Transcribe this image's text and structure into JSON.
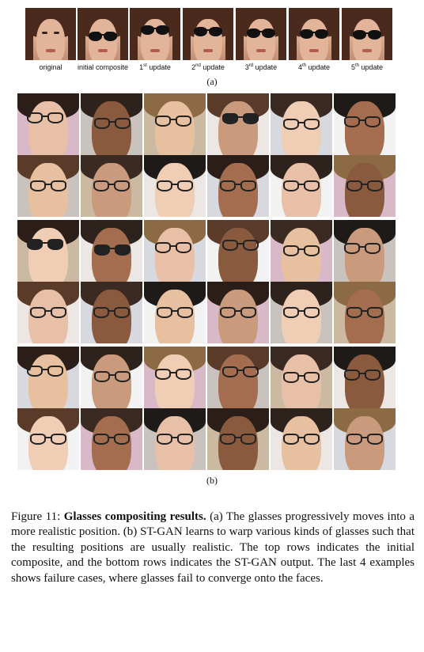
{
  "strip": {
    "labels": [
      {
        "main": "original",
        "sup": ""
      },
      {
        "main": "initial composite",
        "sup": ""
      },
      {
        "main": "1",
        "sup": "st",
        "rest": " update"
      },
      {
        "main": "2",
        "sup": "nd",
        "rest": " update"
      },
      {
        "main": "3",
        "sup": "rd",
        "rest": " update"
      },
      {
        "main": "4",
        "sup": "th",
        "rest": " update"
      },
      {
        "main": "5",
        "sup": "th",
        "rest": " update"
      }
    ],
    "caption": "(a)"
  },
  "grid": {
    "caption": "(b)"
  },
  "figure": {
    "number": "Figure 11:",
    "title": "Glasses compositing results.",
    "body": "(a) The glasses progressively moves into a more realistic position. (b) ST-GAN learns to warp various kinds of glasses such that the resulting positions are usually realistic. The top rows indicates the initial composite, and the bottom rows indicates the ST-GAN output. The last 4 examples shows failure cases, where glasses fail to converge onto the faces."
  }
}
